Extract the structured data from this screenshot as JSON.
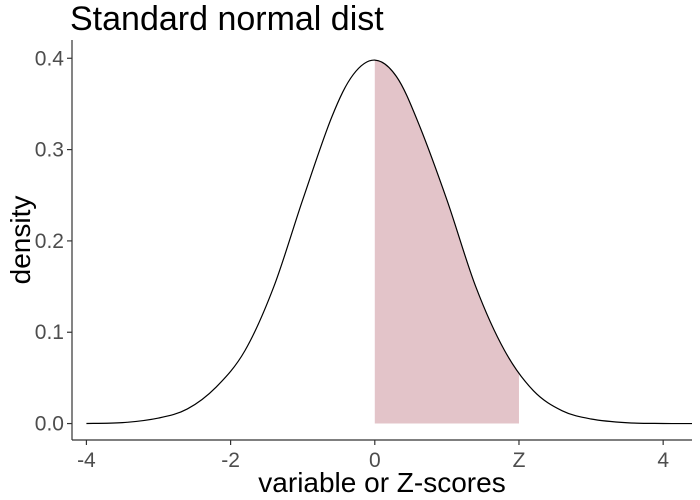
{
  "chart_data": {
    "type": "area",
    "title": "Standard normal dist",
    "xlabel": "variable or Z-scores",
    "ylabel": "density",
    "xlim": [
      -4.2,
      4.4
    ],
    "ylim": [
      -0.018,
      0.42
    ],
    "x_ticks": [
      {
        "value": -4,
        "label": "-4"
      },
      {
        "value": -2,
        "label": "-2"
      },
      {
        "value": 0,
        "label": "0"
      },
      {
        "value": 2,
        "label": "Z"
      },
      {
        "value": 4,
        "label": "4"
      }
    ],
    "y_ticks": [
      {
        "value": 0.0,
        "label": "0.0"
      },
      {
        "value": 0.1,
        "label": "0.1"
      },
      {
        "value": 0.2,
        "label": "0.2"
      },
      {
        "value": 0.3,
        "label": "0.3"
      },
      {
        "value": 0.4,
        "label": "0.4"
      }
    ],
    "series": [
      {
        "x": [
          -4.0,
          -3.5,
          -3.0,
          -2.6,
          -2.2,
          -1.8,
          -1.4,
          -1.0,
          -0.6,
          -0.3,
          0.0,
          0.3,
          0.6,
          1.0,
          1.4,
          1.8,
          2.2,
          2.6,
          3.0,
          3.5,
          4.0,
          4.4
        ],
        "y": [
          0.0001,
          0.001,
          0.006,
          0.016,
          0.04,
          0.08,
          0.15,
          0.245,
          0.335,
          0.382,
          0.398,
          0.38,
          0.33,
          0.245,
          0.15,
          0.08,
          0.036,
          0.014,
          0.005,
          0.0009,
          0.0001,
          0.0
        ]
      }
    ],
    "shaded_region": {
      "from": 0.0,
      "to": 2.0,
      "color": "#e3c4c9"
    },
    "grid": false
  }
}
